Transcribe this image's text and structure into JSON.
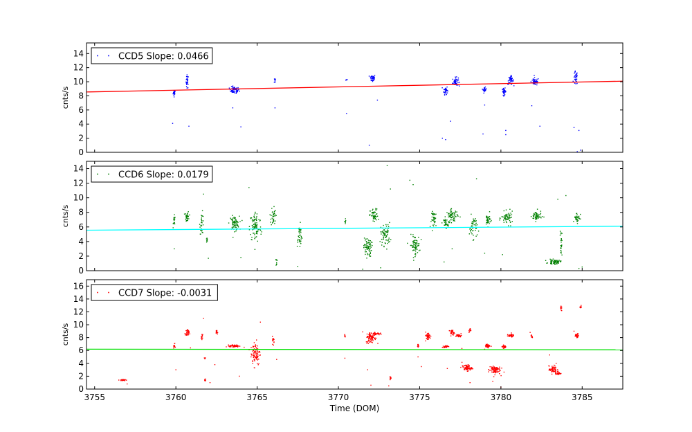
{
  "chart_data": [
    {
      "type": "scatter",
      "id": "ccd5",
      "legend": "CCD5 Slope: 0.0466",
      "ylabel": "cnts/s",
      "ylim": [
        0,
        15.5
      ],
      "yticks": [
        0,
        2,
        4,
        6,
        8,
        10,
        12,
        14
      ],
      "xlim": [
        3754.5,
        3787.5
      ],
      "point_color": "#0000ff",
      "fit_color": "#ff0000",
      "fit": {
        "x0": 3754.5,
        "y0": 8.55,
        "x1": 3787.5,
        "y1": 10.08
      },
      "clusters": [
        {
          "x": 3759.9,
          "y": 8.4,
          "dx": 0.06,
          "dy": 0.35,
          "n": 20
        },
        {
          "x": 3760.7,
          "y": 10.0,
          "dx": 0.06,
          "dy": 0.8,
          "n": 25
        },
        {
          "x": 3763.6,
          "y": 8.8,
          "dx": 0.25,
          "dy": 0.4,
          "n": 60
        },
        {
          "x": 3766.1,
          "y": 10.2,
          "dx": 0.04,
          "dy": 0.3,
          "n": 8
        },
        {
          "x": 3770.5,
          "y": 10.3,
          "dx": 0.04,
          "dy": 0.1,
          "n": 5
        },
        {
          "x": 3772.1,
          "y": 10.5,
          "dx": 0.15,
          "dy": 0.45,
          "n": 40
        },
        {
          "x": 3776.6,
          "y": 8.8,
          "dx": 0.1,
          "dy": 0.5,
          "n": 35
        },
        {
          "x": 3777.2,
          "y": 10.0,
          "dx": 0.15,
          "dy": 0.5,
          "n": 45
        },
        {
          "x": 3779.0,
          "y": 8.9,
          "dx": 0.08,
          "dy": 0.25,
          "n": 25
        },
        {
          "x": 3780.2,
          "y": 8.6,
          "dx": 0.1,
          "dy": 0.4,
          "n": 35
        },
        {
          "x": 3780.6,
          "y": 10.2,
          "dx": 0.15,
          "dy": 0.5,
          "n": 40
        },
        {
          "x": 3782.1,
          "y": 10.0,
          "dx": 0.2,
          "dy": 0.45,
          "n": 55
        },
        {
          "x": 3784.6,
          "y": 10.5,
          "dx": 0.1,
          "dy": 0.8,
          "n": 35
        }
      ],
      "outliers": [
        [
          3759.8,
          4.1
        ],
        [
          3760.8,
          3.7
        ],
        [
          3763.5,
          6.3
        ],
        [
          3764.0,
          3.6
        ],
        [
          3766.1,
          6.3
        ],
        [
          3770.5,
          5.5
        ],
        [
          3771.9,
          1.0
        ],
        [
          3772.4,
          7.4
        ],
        [
          3776.4,
          2.0
        ],
        [
          3776.6,
          1.8
        ],
        [
          3776.9,
          4.4
        ],
        [
          3778.9,
          2.6
        ],
        [
          3779.0,
          6.7
        ],
        [
          3780.3,
          2.5
        ],
        [
          3780.3,
          3.1
        ],
        [
          3781.9,
          6.6
        ],
        [
          3782.4,
          3.7
        ],
        [
          3784.5,
          3.5
        ],
        [
          3784.8,
          3.1
        ],
        [
          3784.9,
          0.3
        ],
        [
          3784.7,
          0.1
        ]
      ]
    },
    {
      "type": "scatter",
      "id": "ccd6",
      "legend": "CCD6 Slope: 0.0179",
      "ylabel": "cnts/s",
      "ylim": [
        0,
        15
      ],
      "yticks": [
        0,
        2,
        4,
        6,
        8,
        10,
        12,
        14
      ],
      "xlim": [
        3754.5,
        3787.5
      ],
      "point_color": "#008000",
      "fit_color": "#00ffff",
      "fit": {
        "x0": 3754.5,
        "y0": 5.55,
        "x1": 3787.5,
        "y1": 6.1
      },
      "clusters": [
        {
          "x": 3759.9,
          "y": 6.8,
          "dx": 0.05,
          "dy": 0.6,
          "n": 20
        },
        {
          "x": 3760.7,
          "y": 7.4,
          "dx": 0.1,
          "dy": 0.6,
          "n": 30
        },
        {
          "x": 3761.6,
          "y": 6.5,
          "dx": 0.1,
          "dy": 1.2,
          "n": 30
        },
        {
          "x": 3761.9,
          "y": 4.2,
          "dx": 0.04,
          "dy": 0.4,
          "n": 8
        },
        {
          "x": 3763.6,
          "y": 6.5,
          "dx": 0.25,
          "dy": 0.8,
          "n": 70
        },
        {
          "x": 3764.9,
          "y": 6.0,
          "dx": 0.3,
          "dy": 1.8,
          "n": 90
        },
        {
          "x": 3766.0,
          "y": 7.5,
          "dx": 0.12,
          "dy": 1.2,
          "n": 35
        },
        {
          "x": 3766.2,
          "y": 1.2,
          "dx": 0.03,
          "dy": 0.5,
          "n": 8
        },
        {
          "x": 3767.6,
          "y": 4.8,
          "dx": 0.15,
          "dy": 1.3,
          "n": 40
        },
        {
          "x": 3770.4,
          "y": 6.8,
          "dx": 0.04,
          "dy": 0.3,
          "n": 6
        },
        {
          "x": 3771.8,
          "y": 3.2,
          "dx": 0.2,
          "dy": 1.1,
          "n": 70
        },
        {
          "x": 3772.2,
          "y": 7.5,
          "dx": 0.2,
          "dy": 0.8,
          "n": 55
        },
        {
          "x": 3772.9,
          "y": 5.0,
          "dx": 0.25,
          "dy": 1.3,
          "n": 70
        },
        {
          "x": 3774.7,
          "y": 3.5,
          "dx": 0.25,
          "dy": 1.1,
          "n": 70
        },
        {
          "x": 3775.9,
          "y": 7.0,
          "dx": 0.15,
          "dy": 0.9,
          "n": 40
        },
        {
          "x": 3776.6,
          "y": 6.5,
          "dx": 0.1,
          "dy": 0.6,
          "n": 25
        },
        {
          "x": 3777.0,
          "y": 7.5,
          "dx": 0.3,
          "dy": 0.7,
          "n": 70
        },
        {
          "x": 3778.3,
          "y": 6.0,
          "dx": 0.2,
          "dy": 1.3,
          "n": 45
        },
        {
          "x": 3779.2,
          "y": 7.0,
          "dx": 0.15,
          "dy": 0.7,
          "n": 35
        },
        {
          "x": 3780.4,
          "y": 7.2,
          "dx": 0.3,
          "dy": 0.7,
          "n": 60
        },
        {
          "x": 3782.2,
          "y": 7.5,
          "dx": 0.25,
          "dy": 0.6,
          "n": 55
        },
        {
          "x": 3783.3,
          "y": 1.2,
          "dx": 0.3,
          "dy": 0.25,
          "n": 60
        },
        {
          "x": 3783.7,
          "y": 3.8,
          "dx": 0.05,
          "dy": 1.5,
          "n": 25
        },
        {
          "x": 3784.7,
          "y": 7.3,
          "dx": 0.15,
          "dy": 0.6,
          "n": 35
        }
      ],
      "outliers": [
        [
          3759.9,
          3.0
        ],
        [
          3761.7,
          10.5
        ],
        [
          3762.0,
          1.7
        ],
        [
          3764.0,
          1.8
        ],
        [
          3764.5,
          11.4
        ],
        [
          3767.5,
          0.6
        ],
        [
          3771.5,
          0.2
        ],
        [
          3772.6,
          0.4
        ],
        [
          3773.0,
          14.4
        ],
        [
          3773.2,
          11.2
        ],
        [
          3774.4,
          12.4
        ],
        [
          3774.6,
          11.8
        ],
        [
          3776.5,
          1.2
        ],
        [
          3777.0,
          3.0
        ],
        [
          3778.5,
          12.6
        ],
        [
          3779.0,
          2.4
        ],
        [
          3780.1,
          2.2
        ],
        [
          3783.5,
          9.8
        ],
        [
          3784.0,
          10.3
        ],
        [
          3785.0,
          0.5
        ],
        [
          3784.8,
          0.3
        ]
      ]
    },
    {
      "type": "scatter",
      "id": "ccd7",
      "legend": "CCD7 Slope: -0.0031",
      "ylabel": "cnts/s",
      "ylim": [
        0,
        17
      ],
      "yticks": [
        0,
        2,
        4,
        6,
        8,
        10,
        12,
        14,
        16
      ],
      "xlim": [
        3754.5,
        3787.5
      ],
      "xticks": [
        3755,
        3760,
        3765,
        3770,
        3775,
        3780,
        3785
      ],
      "xlabel": "Time (DOM)",
      "point_color": "#ff0000",
      "fit_color": "#00e000",
      "fit": {
        "x0": 3754.5,
        "y0": 6.2,
        "x1": 3787.5,
        "y1": 6.1
      },
      "clusters": [
        {
          "x": 3756.7,
          "y": 1.4,
          "dx": 0.15,
          "dy": 0.08,
          "n": 35
        },
        {
          "x": 3759.9,
          "y": 6.7,
          "dx": 0.04,
          "dy": 0.3,
          "n": 12
        },
        {
          "x": 3760.7,
          "y": 8.7,
          "dx": 0.1,
          "dy": 0.5,
          "n": 30
        },
        {
          "x": 3761.6,
          "y": 8.0,
          "dx": 0.04,
          "dy": 0.4,
          "n": 12
        },
        {
          "x": 3761.8,
          "y": 4.7,
          "dx": 0.03,
          "dy": 0.15,
          "n": 6
        },
        {
          "x": 3761.8,
          "y": 1.5,
          "dx": 0.04,
          "dy": 0.3,
          "n": 8
        },
        {
          "x": 3762.5,
          "y": 8.8,
          "dx": 0.06,
          "dy": 0.3,
          "n": 15
        },
        {
          "x": 3763.6,
          "y": 6.7,
          "dx": 0.25,
          "dy": 0.15,
          "n": 60
        },
        {
          "x": 3764.9,
          "y": 5.6,
          "dx": 0.25,
          "dy": 1.6,
          "n": 90
        },
        {
          "x": 3766.0,
          "y": 7.6,
          "dx": 0.05,
          "dy": 0.5,
          "n": 15
        },
        {
          "x": 3770.4,
          "y": 8.2,
          "dx": 0.03,
          "dy": 0.3,
          "n": 6
        },
        {
          "x": 3772.0,
          "y": 8.0,
          "dx": 0.25,
          "dy": 0.7,
          "n": 80
        },
        {
          "x": 3772.3,
          "y": 8.6,
          "dx": 0.2,
          "dy": 0.15,
          "n": 40
        },
        {
          "x": 3773.2,
          "y": 1.7,
          "dx": 0.04,
          "dy": 0.2,
          "n": 8
        },
        {
          "x": 3774.9,
          "y": 6.8,
          "dx": 0.04,
          "dy": 0.3,
          "n": 10
        },
        {
          "x": 3775.5,
          "y": 8.2,
          "dx": 0.15,
          "dy": 0.5,
          "n": 40
        },
        {
          "x": 3776.6,
          "y": 6.6,
          "dx": 0.12,
          "dy": 0.15,
          "n": 30
        },
        {
          "x": 3777.0,
          "y": 8.8,
          "dx": 0.12,
          "dy": 0.3,
          "n": 30
        },
        {
          "x": 3777.4,
          "y": 8.3,
          "dx": 0.15,
          "dy": 0.2,
          "n": 30
        },
        {
          "x": 3778.1,
          "y": 9.1,
          "dx": 0.05,
          "dy": 0.3,
          "n": 12
        },
        {
          "x": 3777.9,
          "y": 3.3,
          "dx": 0.25,
          "dy": 0.4,
          "n": 70
        },
        {
          "x": 3779.2,
          "y": 6.7,
          "dx": 0.12,
          "dy": 0.2,
          "n": 30
        },
        {
          "x": 3779.6,
          "y": 3.0,
          "dx": 0.3,
          "dy": 0.6,
          "n": 80
        },
        {
          "x": 3780.2,
          "y": 6.6,
          "dx": 0.1,
          "dy": 0.2,
          "n": 25
        },
        {
          "x": 3780.6,
          "y": 8.3,
          "dx": 0.18,
          "dy": 0.2,
          "n": 40
        },
        {
          "x": 3781.9,
          "y": 8.2,
          "dx": 0.04,
          "dy": 0.2,
          "n": 8
        },
        {
          "x": 3783.2,
          "y": 3.0,
          "dx": 0.2,
          "dy": 0.5,
          "n": 55
        },
        {
          "x": 3783.5,
          "y": 2.5,
          "dx": 0.15,
          "dy": 0.3,
          "n": 35
        },
        {
          "x": 3783.7,
          "y": 12.5,
          "dx": 0.04,
          "dy": 0.3,
          "n": 10
        },
        {
          "x": 3784.7,
          "y": 8.3,
          "dx": 0.1,
          "dy": 0.25,
          "n": 30
        },
        {
          "x": 3784.9,
          "y": 12.7,
          "dx": 0.05,
          "dy": 0.3,
          "n": 12
        }
      ],
      "outliers": [
        [
          3757.0,
          0.8
        ],
        [
          3760.0,
          3.0
        ],
        [
          3760.9,
          6.4
        ],
        [
          3761.7,
          11.0
        ],
        [
          3762.1,
          1.0
        ],
        [
          3762.4,
          3.8
        ],
        [
          3763.9,
          2.0
        ],
        [
          3764.2,
          6.5
        ],
        [
          3765.2,
          10.4
        ],
        [
          3766.2,
          4.6
        ],
        [
          3770.4,
          4.8
        ],
        [
          3771.8,
          3.0
        ],
        [
          3772.0,
          0.6
        ],
        [
          3773.1,
          0.5
        ],
        [
          3774.9,
          5.0
        ],
        [
          3775.1,
          3.5
        ],
        [
          3776.7,
          3.2
        ],
        [
          3777.6,
          6.3
        ],
        [
          3778.1,
          1.0
        ],
        [
          3779.0,
          6.2
        ],
        [
          3779.5,
          1.2
        ],
        [
          3780.0,
          0.3
        ],
        [
          3781.8,
          8.8
        ],
        [
          3783.0,
          5.3
        ],
        [
          3783.4,
          4.0
        ],
        [
          3784.5,
          9.0
        ]
      ]
    }
  ]
}
